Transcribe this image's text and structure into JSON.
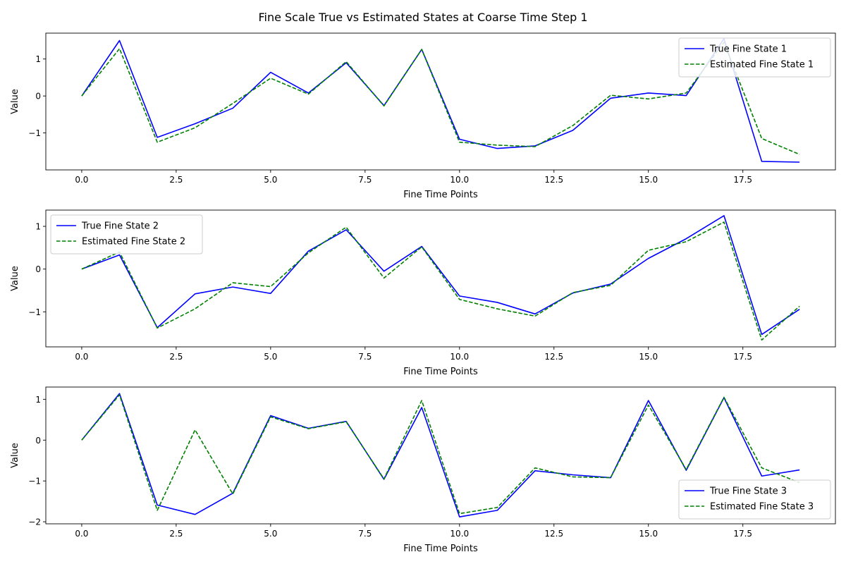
{
  "figure": {
    "title": "Fine Scale True vs Estimated States at Coarse Time Step 1"
  },
  "chart_data": [
    {
      "type": "line",
      "xlabel": "Fine Time Points",
      "ylabel": "Value",
      "xlim": [
        -0.95,
        19.95
      ],
      "ylim": [
        -2.0,
        1.7
      ],
      "xticks": [
        0.0,
        2.5,
        5.0,
        7.5,
        10.0,
        12.5,
        15.0,
        17.5
      ],
      "xtick_labels": [
        "0.0",
        "2.5",
        "5.0",
        "7.5",
        "10.0",
        "12.5",
        "15.0",
        "17.5"
      ],
      "yticks": [
        1,
        0,
        -1
      ],
      "ytick_labels": [
        "1",
        "0",
        "−1"
      ],
      "legend_position": "top-right",
      "x": [
        0,
        1,
        2,
        3,
        4,
        5,
        6,
        7,
        8,
        9,
        10,
        11,
        12,
        13,
        14,
        15,
        16,
        17,
        18,
        19
      ],
      "series": [
        {
          "name": "True Fine State 1",
          "color": "#0000ff",
          "dash": "solid",
          "values": [
            0.0,
            1.5,
            -1.12,
            -0.75,
            -0.33,
            0.64,
            0.08,
            0.9,
            -0.26,
            1.26,
            -1.17,
            -1.42,
            -1.35,
            -0.93,
            -0.06,
            0.08,
            0.01,
            1.55,
            -1.77,
            -1.79
          ]
        },
        {
          "name": "Estimated Fine State 1",
          "color": "#008000",
          "dash": "dashed",
          "values": [
            0.0,
            1.28,
            -1.25,
            -0.86,
            -0.2,
            0.48,
            0.05,
            0.93,
            -0.27,
            1.26,
            -1.25,
            -1.33,
            -1.37,
            -0.8,
            0.02,
            -0.08,
            0.08,
            1.45,
            -1.15,
            -1.58
          ]
        }
      ]
    },
    {
      "type": "line",
      "xlabel": "Fine Time Points",
      "ylabel": "Value",
      "xlim": [
        -0.95,
        19.95
      ],
      "ylim": [
        -1.82,
        1.38
      ],
      "xticks": [
        0.0,
        2.5,
        5.0,
        7.5,
        10.0,
        12.5,
        15.0,
        17.5
      ],
      "xtick_labels": [
        "0.0",
        "2.5",
        "5.0",
        "7.5",
        "10.0",
        "12.5",
        "15.0",
        "17.5"
      ],
      "yticks": [
        1,
        0,
        -1
      ],
      "ytick_labels": [
        "1",
        "0",
        "−1"
      ],
      "legend_position": "top-left",
      "x": [
        0,
        1,
        2,
        3,
        4,
        5,
        6,
        7,
        8,
        9,
        10,
        11,
        12,
        13,
        14,
        15,
        16,
        17,
        18,
        19
      ],
      "series": [
        {
          "name": "True Fine State 2",
          "color": "#0000ff",
          "dash": "solid",
          "values": [
            0.0,
            0.33,
            -1.37,
            -0.58,
            -0.42,
            -0.57,
            0.42,
            0.92,
            -0.05,
            0.53,
            -0.63,
            -0.78,
            -1.05,
            -0.56,
            -0.35,
            0.25,
            0.71,
            1.25,
            -1.53,
            -0.94
          ]
        },
        {
          "name": "Estimated Fine State 2",
          "color": "#008000",
          "dash": "dashed",
          "values": [
            0.0,
            0.4,
            -1.38,
            -0.93,
            -0.32,
            -0.41,
            0.38,
            0.98,
            -0.21,
            0.52,
            -0.71,
            -0.93,
            -1.1,
            -0.55,
            -0.38,
            0.44,
            0.64,
            1.1,
            -1.66,
            -0.87
          ]
        }
      ]
    },
    {
      "type": "line",
      "xlabel": "Fine Time Points",
      "ylabel": "Value",
      "xlim": [
        -0.95,
        19.95
      ],
      "ylim": [
        -2.05,
        1.3
      ],
      "xticks": [
        0.0,
        2.5,
        5.0,
        7.5,
        10.0,
        12.5,
        15.0,
        17.5
      ],
      "xtick_labels": [
        "0.0",
        "2.5",
        "5.0",
        "7.5",
        "10.0",
        "12.5",
        "15.0",
        "17.5"
      ],
      "yticks": [
        1,
        0,
        -1,
        -2
      ],
      "ytick_labels": [
        "1",
        "0",
        "−1",
        "−2"
      ],
      "legend_position": "bottom-right",
      "x": [
        0,
        1,
        2,
        3,
        4,
        5,
        6,
        7,
        8,
        9,
        10,
        11,
        12,
        13,
        14,
        15,
        16,
        17,
        18,
        19
      ],
      "series": [
        {
          "name": "True Fine State 3",
          "color": "#0000ff",
          "dash": "solid",
          "values": [
            0.0,
            1.14,
            -1.59,
            -1.82,
            -1.3,
            0.6,
            0.29,
            0.46,
            -0.96,
            0.8,
            -1.88,
            -1.72,
            -0.75,
            -0.85,
            -0.92,
            0.97,
            -0.74,
            1.04,
            -0.88,
            -0.73
          ]
        },
        {
          "name": "Estimated Fine State 3",
          "color": "#008000",
          "dash": "dashed",
          "values": [
            0.0,
            1.11,
            -1.72,
            0.25,
            -1.32,
            0.57,
            0.28,
            0.45,
            -0.95,
            0.97,
            -1.8,
            -1.65,
            -0.68,
            -0.9,
            -0.92,
            0.86,
            -0.72,
            1.05,
            -0.68,
            -1.04
          ]
        }
      ]
    }
  ]
}
